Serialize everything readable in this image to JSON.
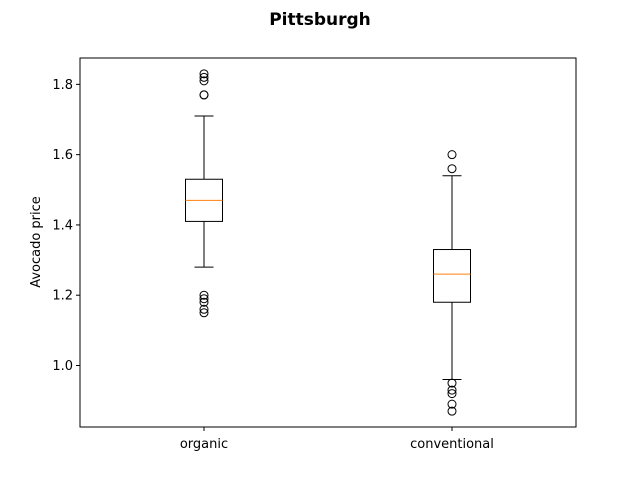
{
  "chart_data": {
    "type": "boxplot",
    "title": "Pittsburgh",
    "xlabel": "",
    "ylabel": "Avocado price",
    "ylim": [
      0.825,
      1.875
    ],
    "yticks": [
      1.0,
      1.2,
      1.4,
      1.6,
      1.8
    ],
    "ytick_labels": [
      "1.0",
      "1.2",
      "1.4",
      "1.6",
      "1.8"
    ],
    "grid": false,
    "categories": [
      "organic",
      "conventional"
    ],
    "boxes": [
      {
        "category": "organic",
        "whisker_low": 1.28,
        "q1": 1.41,
        "median": 1.47,
        "q3": 1.53,
        "whisker_high": 1.71,
        "outliers": [
          1.15,
          1.16,
          1.18,
          1.19,
          1.2,
          1.77,
          1.77,
          1.81,
          1.82,
          1.83
        ]
      },
      {
        "category": "conventional",
        "whisker_low": 0.96,
        "q1": 1.18,
        "median": 1.26,
        "q3": 1.33,
        "whisker_high": 1.54,
        "outliers": [
          0.87,
          0.89,
          0.92,
          0.93,
          0.95,
          1.56,
          1.6
        ]
      }
    ],
    "colors": {
      "box": "#000000",
      "median": "#ff7f0e"
    }
  }
}
